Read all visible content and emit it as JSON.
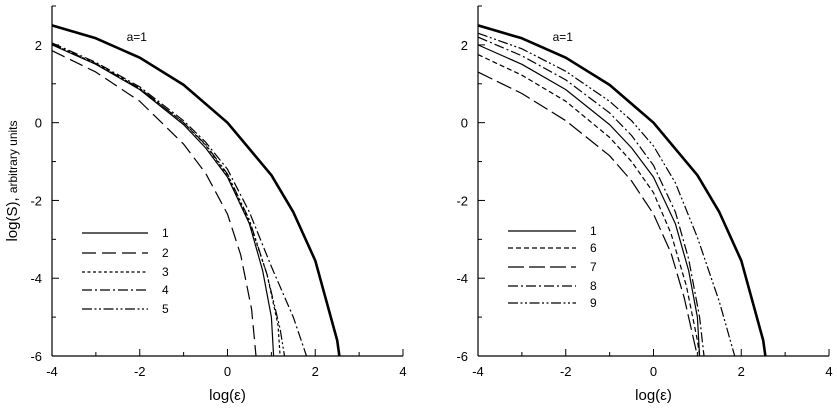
{
  "chart_data": [
    {
      "type": "line",
      "title": "",
      "xlabel": "log(ε)",
      "ylabel_main": "log(S),",
      "ylabel_sub": "arbitrary units",
      "xlim": [
        -4,
        4
      ],
      "ylim": [
        -6,
        3
      ],
      "xticks": [
        "-4",
        "-2",
        "0",
        "2",
        "4"
      ],
      "yticks": [
        "2",
        "0",
        "-2",
        "-4",
        "-6"
      ],
      "grid": false,
      "legend_position": "lower-left",
      "annotation": "a=1",
      "series": [
        {
          "name": "a=1",
          "points": [
            [
              -4,
              2.5
            ],
            [
              -3,
              2.17
            ],
            [
              -2,
              1.67
            ],
            [
              -1,
              0.97
            ],
            [
              0,
              0.0
            ],
            [
              1,
              -1.35
            ],
            [
              1.5,
              -2.3
            ],
            [
              2,
              -3.55
            ],
            [
              2.5,
              -5.6
            ],
            [
              2.55,
              -6.0
            ]
          ]
        },
        {
          "name": "1",
          "points": [
            [
              -4,
              2.0
            ],
            [
              -3,
              1.5
            ],
            [
              -2,
              0.85
            ],
            [
              -1,
              -0.05
            ],
            [
              -0.5,
              -0.65
            ],
            [
              0,
              -1.4
            ],
            [
              0.5,
              -2.6
            ],
            [
              0.8,
              -3.8
            ],
            [
              1.0,
              -5.0
            ],
            [
              1.05,
              -6.0
            ]
          ]
        },
        {
          "name": "2",
          "points": [
            [
              -4,
              1.85
            ],
            [
              -3,
              1.3
            ],
            [
              -2,
              0.55
            ],
            [
              -1,
              -0.55
            ],
            [
              -0.5,
              -1.3
            ],
            [
              0,
              -2.35
            ],
            [
              0.3,
              -3.4
            ],
            [
              0.55,
              -4.8
            ],
            [
              0.65,
              -6.0
            ]
          ]
        },
        {
          "name": "3",
          "points": [
            [
              -4,
              2.02
            ],
            [
              -3,
              1.52
            ],
            [
              -2,
              0.88
            ],
            [
              -1,
              0.0
            ],
            [
              -0.5,
              -0.58
            ],
            [
              0,
              -1.35
            ],
            [
              0.5,
              -2.55
            ],
            [
              0.9,
              -3.9
            ],
            [
              1.15,
              -5.2
            ],
            [
              1.2,
              -6.0
            ]
          ]
        },
        {
          "name": "4",
          "points": [
            [
              -4,
              2.05
            ],
            [
              -3,
              1.55
            ],
            [
              -2,
              0.92
            ],
            [
              -1,
              0.05
            ],
            [
              -0.5,
              -0.5
            ],
            [
              0,
              -1.2
            ],
            [
              0.5,
              -2.3
            ],
            [
              1.0,
              -3.7
            ],
            [
              1.5,
              -5.0
            ],
            [
              1.8,
              -6.0
            ]
          ]
        },
        {
          "name": "5",
          "points": [
            [
              -4,
              2.02
            ],
            [
              -3,
              1.52
            ],
            [
              -2,
              0.88
            ],
            [
              -1,
              0.0
            ],
            [
              -0.5,
              -0.56
            ],
            [
              0,
              -1.32
            ],
            [
              0.5,
              -2.5
            ],
            [
              0.9,
              -3.9
            ],
            [
              1.2,
              -5.3
            ],
            [
              1.3,
              -6.0
            ]
          ]
        }
      ],
      "styles": {
        "a=1": {
          "dash": "",
          "width": 2.6
        },
        "1": {
          "dash": "",
          "width": 1.2
        },
        "2": {
          "dash": "14 6",
          "width": 1.2
        },
        "3": {
          "dash": "3 2.5",
          "width": 1.2
        },
        "4": {
          "dash": "10 3 2 3",
          "width": 1.2
        },
        "5": {
          "dash": "10 2.5 2 2.5 2 2.5",
          "width": 1.2
        }
      },
      "legend": [
        "1",
        "2",
        "3",
        "4",
        "5"
      ]
    },
    {
      "type": "line",
      "title": "",
      "xlabel": "log(ε)",
      "xlim": [
        -4,
        4
      ],
      "ylim": [
        -6,
        3
      ],
      "xticks": [
        "-4",
        "-2",
        "0",
        "2",
        "4"
      ],
      "yticks": [
        "2",
        "0",
        "-2",
        "-4",
        "-6"
      ],
      "grid": false,
      "legend_position": "lower-left",
      "annotation": "a=1",
      "series": [
        {
          "name": "a=1",
          "points": [
            [
              -4,
              2.5
            ],
            [
              -3,
              2.17
            ],
            [
              -2,
              1.67
            ],
            [
              -1,
              0.97
            ],
            [
              0,
              0.0
            ],
            [
              1,
              -1.35
            ],
            [
              1.5,
              -2.3
            ],
            [
              2,
              -3.55
            ],
            [
              2.5,
              -5.6
            ],
            [
              2.55,
              -6.0
            ]
          ]
        },
        {
          "name": "1",
          "points": [
            [
              -4,
              2.0
            ],
            [
              -3,
              1.5
            ],
            [
              -2,
              0.85
            ],
            [
              -1,
              -0.05
            ],
            [
              -0.5,
              -0.65
            ],
            [
              0,
              -1.4
            ],
            [
              0.5,
              -2.6
            ],
            [
              0.8,
              -3.8
            ],
            [
              1.0,
              -5.0
            ],
            [
              1.05,
              -6.0
            ]
          ]
        },
        {
          "name": "6",
          "points": [
            [
              -4,
              1.75
            ],
            [
              -3,
              1.22
            ],
            [
              -2,
              0.55
            ],
            [
              -1,
              -0.38
            ],
            [
              -0.5,
              -1.0
            ],
            [
              0,
              -1.8
            ],
            [
              0.4,
              -2.85
            ],
            [
              0.75,
              -4.2
            ],
            [
              1.0,
              -5.6
            ],
            [
              1.05,
              -6.0
            ]
          ]
        },
        {
          "name": "7",
          "points": [
            [
              -4,
              1.3
            ],
            [
              -3,
              0.75
            ],
            [
              -2,
              0.05
            ],
            [
              -1,
              -0.85
            ],
            [
              -0.5,
              -1.5
            ],
            [
              0,
              -2.35
            ],
            [
              0.4,
              -3.35
            ],
            [
              0.7,
              -4.5
            ],
            [
              0.9,
              -5.5
            ],
            [
              1.0,
              -6.0
            ]
          ]
        },
        {
          "name": "8",
          "points": [
            [
              -4,
              2.2
            ],
            [
              -3,
              1.72
            ],
            [
              -2,
              1.1
            ],
            [
              -1,
              0.25
            ],
            [
              -0.5,
              -0.33
            ],
            [
              0,
              -1.1
            ],
            [
              0.5,
              -2.3
            ],
            [
              0.8,
              -3.5
            ],
            [
              1.05,
              -5.0
            ],
            [
              1.15,
              -6.0
            ]
          ]
        },
        {
          "name": "9",
          "points": [
            [
              -4,
              2.3
            ],
            [
              -3,
              1.9
            ],
            [
              -2,
              1.32
            ],
            [
              -1,
              0.55
            ],
            [
              -0.5,
              0.05
            ],
            [
              0,
              -0.6
            ],
            [
              0.5,
              -1.55
            ],
            [
              1.0,
              -2.95
            ],
            [
              1.5,
              -4.6
            ],
            [
              1.85,
              -6.0
            ]
          ]
        }
      ],
      "styles": {
        "a=1": {
          "dash": "",
          "width": 2.6
        },
        "1": {
          "dash": "",
          "width": 1.2
        },
        "6": {
          "dash": "5 3",
          "width": 1.2
        },
        "7": {
          "dash": "16 5",
          "width": 1.2
        },
        "8": {
          "dash": "10 3 2 3",
          "width": 1.2
        },
        "9": {
          "dash": "10 2.5 2 2.5 2 2.5",
          "width": 1.2
        }
      },
      "legend": [
        "1",
        "6",
        "7",
        "8",
        "9"
      ]
    }
  ]
}
